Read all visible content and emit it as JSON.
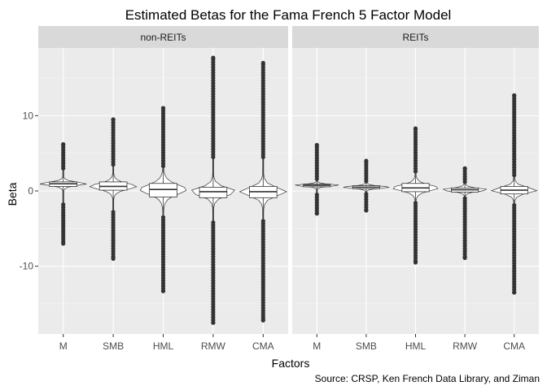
{
  "chart_data": {
    "type": "violin+box",
    "title": "Estimated Betas for the Fama French 5 Factor Model",
    "xlabel": "Factors",
    "ylabel": "Beta",
    "caption": "Source: CRSP, Ken French Data Library, and Ziman",
    "ylim": [
      -19,
      19
    ],
    "yticks": [
      -10,
      0,
      10
    ],
    "grid": true,
    "categories": [
      "M",
      "SMB",
      "HML",
      "RMW",
      "CMA"
    ],
    "panels": [
      {
        "name": "non-REITs",
        "series": [
          {
            "factor": "M",
            "min": -7.0,
            "q1": 0.6,
            "median": 0.95,
            "q3": 1.2,
            "max": 6.2,
            "whisker_low": -1.8,
            "whisker_high": 3.0
          },
          {
            "factor": "SMB",
            "min": -9.0,
            "q1": 0.1,
            "median": 0.6,
            "q3": 1.2,
            "max": 9.5,
            "whisker_low": -2.8,
            "whisker_high": 3.5
          },
          {
            "factor": "HML",
            "min": -13.3,
            "q1": -0.8,
            "median": 0.2,
            "q3": 1.0,
            "max": 11.0,
            "whisker_low": -3.5,
            "whisker_high": 3.3
          },
          {
            "factor": "RMW",
            "min": -17.5,
            "q1": -0.9,
            "median": -0.1,
            "q3": 0.5,
            "max": 17.7,
            "whisker_low": -4.2,
            "whisker_high": 4.5
          },
          {
            "factor": "CMA",
            "min": -17.2,
            "q1": -0.9,
            "median": -0.1,
            "q3": 0.6,
            "max": 17.0,
            "whisker_low": -4.0,
            "whisker_high": 4.5
          }
        ]
      },
      {
        "name": "REITs",
        "series": [
          {
            "factor": "M",
            "min": -3.0,
            "q1": 0.55,
            "median": 0.75,
            "q3": 0.9,
            "max": 6.1,
            "whisker_low": -0.5,
            "whisker_high": 1.6
          },
          {
            "factor": "SMB",
            "min": -2.6,
            "q1": 0.3,
            "median": 0.5,
            "q3": 0.7,
            "max": 4.0,
            "whisker_low": -0.4,
            "whisker_high": 1.3
          },
          {
            "factor": "HML",
            "min": -9.5,
            "q1": -0.1,
            "median": 0.4,
            "q3": 1.0,
            "max": 8.3,
            "whisker_low": -1.6,
            "whisker_high": 2.6
          },
          {
            "factor": "RMW",
            "min": -8.9,
            "q1": -0.15,
            "median": 0.15,
            "q3": 0.4,
            "max": 3.0,
            "whisker_low": -1.0,
            "whisker_high": 1.2
          },
          {
            "factor": "CMA",
            "min": -13.5,
            "q1": -0.4,
            "median": 0.1,
            "q3": 0.6,
            "max": 12.7,
            "whisker_low": -1.9,
            "whisker_high": 2.1
          }
        ]
      }
    ]
  },
  "colors": {
    "panel_bg": "#ebebeb",
    "strip_bg": "#d9d9d9",
    "grid_major": "#ffffff",
    "outline": "#333333"
  }
}
